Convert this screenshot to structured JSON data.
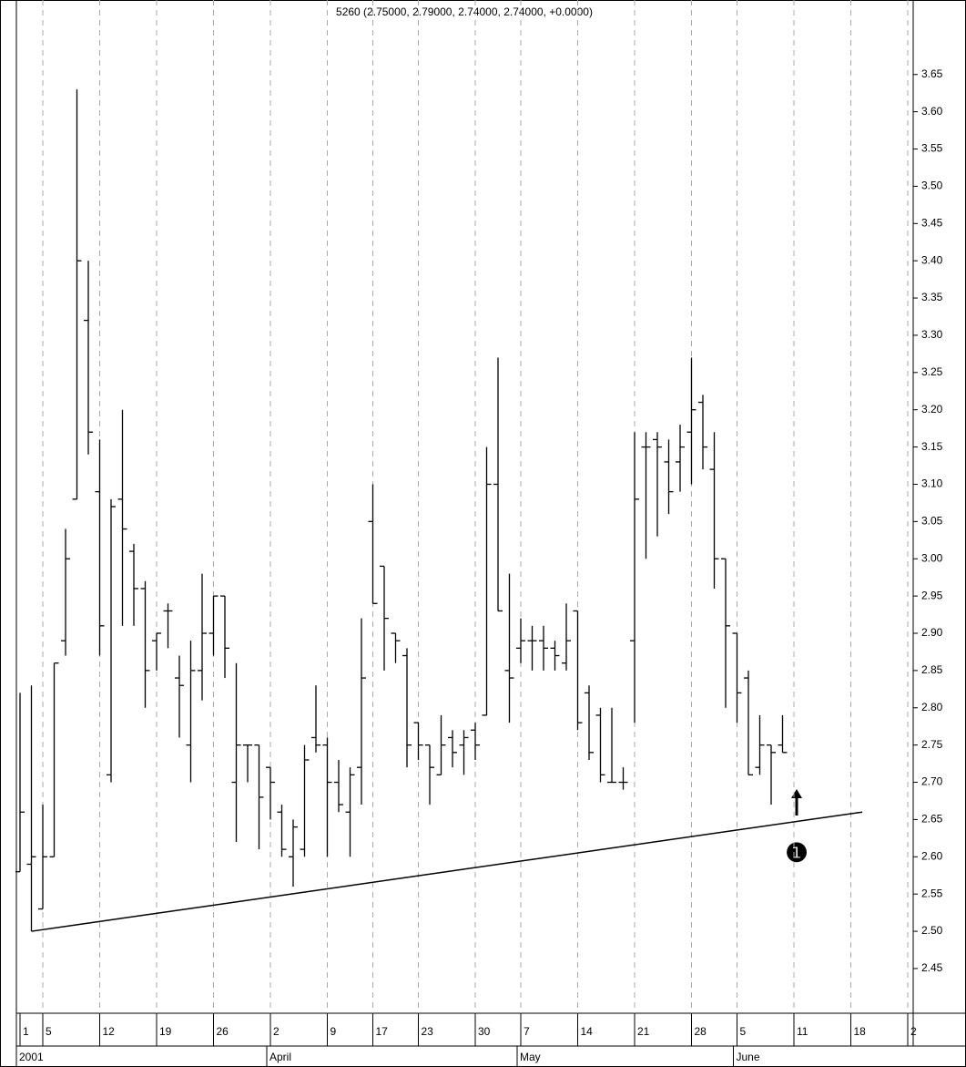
{
  "chart_data": {
    "type": "ohlc",
    "title": "5260 (2.75000, 2.79000, 2.74000, 2.74000, +0.0000)",
    "color": "#000000",
    "grid": true,
    "ylim": [
      2.39,
      3.75
    ],
    "yticks": [
      2.45,
      {
        "value": 2.5,
        "label": "2.50"
      },
      2.55,
      {
        "value": 2.6,
        "label": "2.60"
      },
      2.65,
      {
        "value": 2.7,
        "label": "2.70"
      },
      2.75,
      {
        "value": 2.8,
        "label": "2.80"
      },
      2.85,
      {
        "value": 2.9,
        "label": "2.90"
      },
      2.95,
      {
        "value": 3,
        "label": "3.00"
      },
      3.05,
      {
        "value": 3.1,
        "label": "3.10"
      },
      3.15,
      {
        "value": 3.2,
        "label": "3.20"
      },
      3.25,
      {
        "value": 3.3,
        "label": "3.30"
      },
      3.35,
      {
        "value": 3.4,
        "label": "3.40"
      },
      3.45,
      {
        "value": 3.5,
        "label": "3.50"
      },
      3.55,
      {
        "value": 3.6,
        "label": "3.60"
      },
      3.65
    ],
    "categories": [
      "1",
      null,
      "5",
      null,
      null,
      null,
      null,
      "12",
      null,
      null,
      null,
      null,
      "19",
      null,
      null,
      null,
      null,
      "26",
      null,
      null,
      null,
      null,
      "2",
      null,
      null,
      null,
      null,
      "9",
      null,
      null,
      null,
      "17",
      null,
      null,
      null,
      "23",
      null,
      null,
      null,
      null,
      "30",
      null,
      null,
      null,
      "7",
      null,
      null,
      null,
      null,
      "14",
      null,
      null,
      null,
      null,
      "21",
      null,
      null,
      null,
      null,
      "28",
      null,
      null,
      null,
      "5",
      null,
      null,
      null,
      null,
      "11",
      null,
      null,
      null,
      null,
      "18",
      null,
      null,
      null,
      null,
      "2"
    ],
    "periods": [
      "2001",
      null,
      null,
      null,
      null,
      null,
      null,
      null,
      null,
      null,
      null,
      null,
      null,
      null,
      null,
      null,
      null,
      null,
      null,
      null,
      null,
      null,
      "April",
      null,
      null,
      null,
      null,
      null,
      null,
      null,
      null,
      null,
      null,
      null,
      null,
      null,
      null,
      null,
      null,
      null,
      null,
      null,
      null,
      null,
      "May",
      null,
      null,
      null,
      null,
      null,
      null,
      null,
      null,
      null,
      null,
      null,
      null,
      null,
      null,
      null,
      null,
      null,
      null,
      "June",
      null,
      null,
      null,
      null,
      null,
      null,
      null,
      null,
      null,
      null,
      null,
      null,
      null,
      null,
      null
    ],
    "open": [
      2.58,
      2.59,
      2.53,
      2.6,
      2.89,
      3.08,
      3.32,
      3.09,
      2.71,
      3.08,
      3.01,
      2.96,
      2.89,
      2.93,
      2.84,
      2.75,
      2.85,
      2.9,
      2.95,
      2.7,
      2.75,
      2.75,
      2.72,
      2.66,
      2.6,
      2.61,
      2.76,
      2.75,
      2.7,
      2.66,
      2.72,
      3.05,
      2.99,
      2.9,
      2.87,
      2.78,
      2.75,
      2.71,
      2.76,
      2.75,
      2.77,
      2.79,
      3.1,
      2.85,
      2.88,
      2.89,
      2.89,
      2.88,
      2.86,
      2.93,
      2.82,
      2.79,
      2.7,
      2.7,
      2.89,
      3.15,
      3.16,
      3.13,
      3.13,
      3.17,
      3.21,
      3.12,
      3.0,
      2.9,
      2.84,
      2.72,
      2.75,
      2.75,
      null,
      null,
      null,
      null,
      null,
      null,
      null,
      null,
      null,
      null,
      null
    ],
    "high": [
      2.82,
      2.83,
      2.67,
      2.86,
      3.04,
      3.63,
      3.4,
      3.16,
      3.08,
      3.2,
      3.02,
      2.97,
      2.9,
      2.94,
      2.87,
      2.89,
      2.98,
      2.95,
      2.95,
      2.86,
      2.75,
      2.75,
      2.72,
      2.67,
      2.65,
      2.75,
      2.83,
      2.76,
      2.73,
      2.72,
      2.92,
      3.1,
      2.99,
      2.9,
      2.88,
      2.78,
      2.75,
      2.79,
      2.77,
      2.77,
      2.78,
      3.15,
      3.27,
      2.98,
      2.92,
      2.91,
      2.91,
      2.89,
      2.94,
      2.93,
      2.83,
      2.8,
      2.8,
      2.72,
      3.17,
      3.17,
      3.17,
      3.16,
      3.18,
      3.27,
      3.22,
      3.17,
      3.0,
      2.9,
      2.85,
      2.79,
      2.75,
      2.79,
      null,
      null,
      null,
      null,
      null,
      null,
      null,
      null,
      null,
      null,
      null
    ],
    "low": [
      2.58,
      2.5,
      2.53,
      2.6,
      2.87,
      3.08,
      3.14,
      2.87,
      2.7,
      2.91,
      2.91,
      2.8,
      2.85,
      2.88,
      2.76,
      2.7,
      2.81,
      2.87,
      2.84,
      2.62,
      2.7,
      2.61,
      2.65,
      2.6,
      2.56,
      2.6,
      2.74,
      2.6,
      2.66,
      2.6,
      2.67,
      2.94,
      2.85,
      2.86,
      2.72,
      2.73,
      2.67,
      2.71,
      2.72,
      2.71,
      2.73,
      2.79,
      2.93,
      2.78,
      2.86,
      2.85,
      2.85,
      2.85,
      2.85,
      2.77,
      2.73,
      2.7,
      2.7,
      2.69,
      2.78,
      3.0,
      3.03,
      3.06,
      3.09,
      3.1,
      3.12,
      2.96,
      2.8,
      2.78,
      2.71,
      2.71,
      2.67,
      2.74,
      null,
      null,
      null,
      null,
      null,
      null,
      null,
      null,
      null,
      null,
      null
    ],
    "close": [
      2.66,
      2.6,
      2.6,
      2.86,
      3.0,
      3.4,
      3.17,
      2.91,
      3.07,
      3.04,
      2.96,
      2.85,
      2.9,
      2.93,
      2.83,
      2.85,
      2.9,
      2.95,
      2.88,
      2.75,
      2.75,
      2.68,
      2.7,
      2.61,
      2.64,
      2.73,
      2.75,
      2.7,
      2.67,
      2.71,
      2.84,
      2.94,
      2.92,
      2.89,
      2.75,
      2.75,
      2.72,
      2.75,
      2.74,
      2.76,
      2.75,
      3.1,
      2.93,
      2.84,
      2.89,
      2.89,
      2.88,
      2.87,
      2.89,
      2.78,
      2.74,
      2.71,
      2.7,
      2.7,
      3.08,
      3.15,
      3.15,
      3.09,
      3.15,
      3.2,
      3.15,
      3.0,
      2.91,
      2.82,
      2.71,
      2.75,
      2.74,
      2.74,
      null,
      null,
      null,
      null,
      null,
      null,
      null,
      null,
      null,
      null,
      null
    ],
    "trendline": {
      "x": [
        1,
        74
      ],
      "values": [
        2.5,
        2.66
      ]
    },
    "annotation": "❶"
  }
}
